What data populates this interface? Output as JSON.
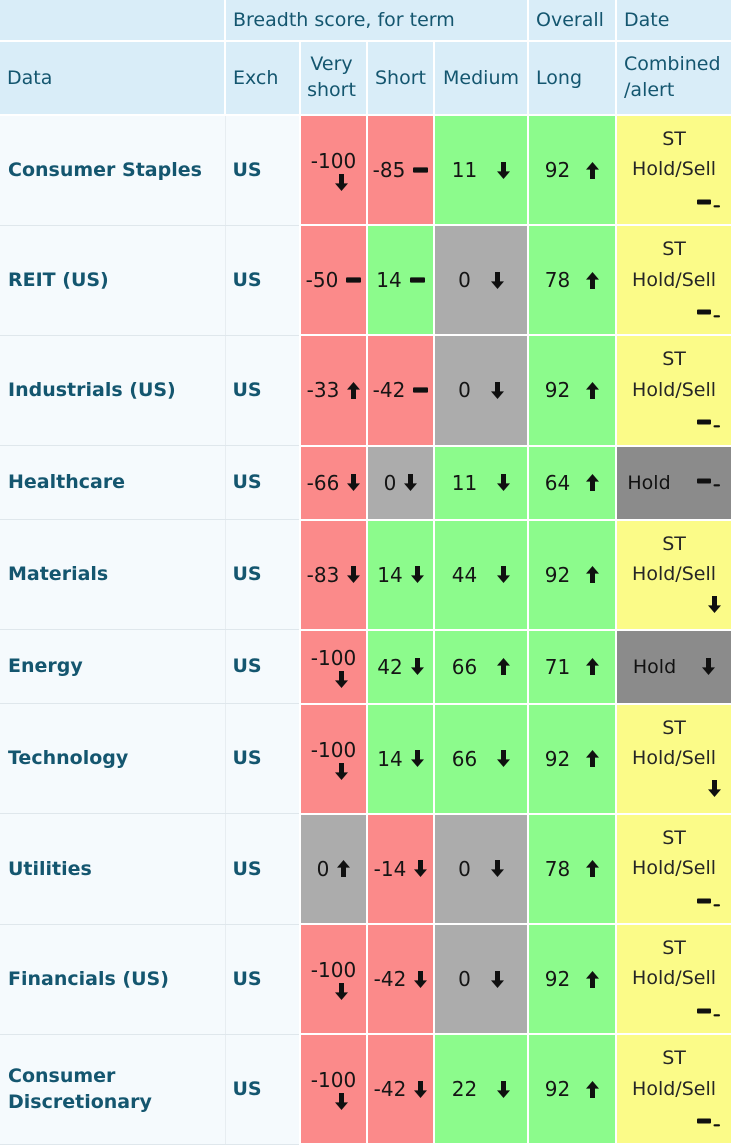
{
  "colors": {
    "header_bg": "#d9edf8",
    "row_bg": "#f5fafd",
    "score_red": "#fb8a8a",
    "score_green": "#8cfb8c",
    "score_gray": "#acacac",
    "combined_gray": "#8b8b8b",
    "combined_yellow": "#fbfb88",
    "heading_text": "#14566f",
    "value_text": "#151515"
  },
  "header": {
    "group": {
      "breadth": "Breadth score, for term",
      "overall": "Overall",
      "date": "Date"
    },
    "columns": {
      "data": "Data",
      "exch": "Exch",
      "very_short": "Very short",
      "short": "Short",
      "medium": "Medium",
      "long": "Long",
      "combined": "Combined /alert"
    }
  },
  "table": {
    "rows": [
      {
        "name": "Consumer Staples",
        "exch": "US",
        "scores": [
          {
            "value": "-100",
            "trend": "down",
            "color": "red"
          },
          {
            "value": "-85",
            "trend": "flat",
            "color": "red"
          },
          {
            "value": "11",
            "trend": "down",
            "color": "green"
          },
          {
            "value": "92",
            "trend": "up",
            "color": "green"
          }
        ],
        "combined": {
          "text": "ST Hold/Sell",
          "trend": "flat_minus",
          "color": "yellow"
        }
      },
      {
        "name": "REIT (US)",
        "exch": "US",
        "scores": [
          {
            "value": "-50",
            "trend": "flat",
            "color": "red"
          },
          {
            "value": "14",
            "trend": "flat",
            "color": "green"
          },
          {
            "value": "0",
            "trend": "down",
            "color": "gray"
          },
          {
            "value": "78",
            "trend": "up",
            "color": "green"
          }
        ],
        "combined": {
          "text": "ST Hold/Sell",
          "trend": "flat_minus",
          "color": "yellow"
        }
      },
      {
        "name": "Industrials (US)",
        "exch": "US",
        "scores": [
          {
            "value": "-33",
            "trend": "up",
            "color": "red"
          },
          {
            "value": "-42",
            "trend": "flat",
            "color": "red"
          },
          {
            "value": "0",
            "trend": "down",
            "color": "gray"
          },
          {
            "value": "92",
            "trend": "up",
            "color": "green"
          }
        ],
        "combined": {
          "text": "ST Hold/Sell",
          "trend": "flat_minus",
          "color": "yellow"
        }
      },
      {
        "name": "Healthcare",
        "exch": "US",
        "scores": [
          {
            "value": "-66",
            "trend": "down",
            "color": "red"
          },
          {
            "value": "0",
            "trend": "down",
            "color": "gray"
          },
          {
            "value": "11",
            "trend": "down",
            "color": "green"
          },
          {
            "value": "64",
            "trend": "up",
            "color": "green"
          }
        ],
        "combined": {
          "text": "Hold",
          "trend": "flat_minus",
          "color": "dark_gray"
        }
      },
      {
        "name": "Materials",
        "exch": "US",
        "scores": [
          {
            "value": "-83",
            "trend": "down",
            "color": "red"
          },
          {
            "value": "14",
            "trend": "down",
            "color": "green"
          },
          {
            "value": "44",
            "trend": "down",
            "color": "green"
          },
          {
            "value": "92",
            "trend": "up",
            "color": "green"
          }
        ],
        "combined": {
          "text": "ST Hold/Sell",
          "trend": "down",
          "color": "yellow"
        }
      },
      {
        "name": "Energy",
        "exch": "US",
        "scores": [
          {
            "value": "-100",
            "trend": "down",
            "color": "red"
          },
          {
            "value": "42",
            "trend": "down",
            "color": "green"
          },
          {
            "value": "66",
            "trend": "up",
            "color": "green"
          },
          {
            "value": "71",
            "trend": "up",
            "color": "green"
          }
        ],
        "combined": {
          "text": "Hold",
          "trend": "down",
          "color": "dark_gray"
        }
      },
      {
        "name": "Technology",
        "exch": "US",
        "scores": [
          {
            "value": "-100",
            "trend": "down",
            "color": "red"
          },
          {
            "value": "14",
            "trend": "down",
            "color": "green"
          },
          {
            "value": "66",
            "trend": "down",
            "color": "green"
          },
          {
            "value": "92",
            "trend": "up",
            "color": "green"
          }
        ],
        "combined": {
          "text": "ST Hold/Sell",
          "trend": "down",
          "color": "yellow"
        }
      },
      {
        "name": "Utilities",
        "exch": "US",
        "scores": [
          {
            "value": "0",
            "trend": "up",
            "color": "gray"
          },
          {
            "value": "-14",
            "trend": "down",
            "color": "red"
          },
          {
            "value": "0",
            "trend": "down",
            "color": "gray"
          },
          {
            "value": "78",
            "trend": "up",
            "color": "green"
          }
        ],
        "combined": {
          "text": "ST Hold/Sell",
          "trend": "flat_minus",
          "color": "yellow"
        }
      },
      {
        "name": "Financials (US)",
        "exch": "US",
        "scores": [
          {
            "value": "-100",
            "trend": "down",
            "color": "red"
          },
          {
            "value": "-42",
            "trend": "down",
            "color": "red"
          },
          {
            "value": "0",
            "trend": "down",
            "color": "gray"
          },
          {
            "value": "92",
            "trend": "up",
            "color": "green"
          }
        ],
        "combined": {
          "text": "ST Hold/Sell",
          "trend": "flat_minus",
          "color": "yellow"
        }
      },
      {
        "name": "Consumer Discretionary",
        "exch": "US",
        "scores": [
          {
            "value": "-100",
            "trend": "down",
            "color": "red"
          },
          {
            "value": "-42",
            "trend": "down",
            "color": "red"
          },
          {
            "value": "22",
            "trend": "down",
            "color": "green"
          },
          {
            "value": "92",
            "trend": "up",
            "color": "green"
          }
        ],
        "combined": {
          "text": "ST Hold/Sell",
          "trend": "flat_minus",
          "color": "yellow"
        }
      }
    ]
  }
}
